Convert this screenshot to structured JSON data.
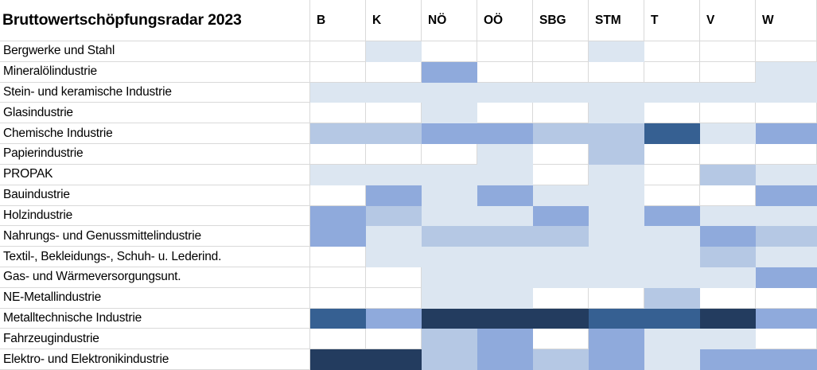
{
  "header": {
    "title": "Bruttowertschöpfungsradar 2023",
    "columns": [
      "B",
      "K",
      "NÖ",
      "OÖ",
      "SBG",
      "STM",
      "T",
      "V",
      "W"
    ]
  },
  "chart_data": {
    "type": "heatmap",
    "title": "Bruttowertschöpfungsradar 2023",
    "x_labels": [
      "B",
      "K",
      "NÖ",
      "OÖ",
      "SBG",
      "STM",
      "T",
      "V",
      "W"
    ],
    "y_labels": [
      "Bergwerke und Stahl",
      "Mineralölindustrie",
      "Stein- und keramische Industrie",
      "Glasindustrie",
      "Chemische Industrie",
      "Papierindustrie",
      "PROPAK",
      "Bauindustrie",
      "Holzindustrie",
      "Nahrungs- und Genussmittelindustrie",
      "Textil-, Bekleidungs-, Schuh- u. Lederind.",
      "Gas- und Wärmeversorgungsunt.",
      "NE-Metallindustrie",
      "Metalltechnische Industrie",
      "Fahrzeugindustrie",
      "Elektro- und Elektronikindustrie"
    ],
    "values": [
      [
        0,
        1,
        0,
        0,
        0,
        1,
        0,
        0,
        0
      ],
      [
        0,
        0,
        3,
        0,
        0,
        0,
        0,
        0,
        1
      ],
      [
        1,
        1,
        1,
        1,
        1,
        1,
        1,
        1,
        1
      ],
      [
        0,
        0,
        1,
        0,
        0,
        1,
        0,
        0,
        0
      ],
      [
        2,
        2,
        3,
        3,
        2,
        2,
        4,
        1,
        3
      ],
      [
        0,
        0,
        0,
        1,
        0,
        2,
        0,
        0,
        0
      ],
      [
        1,
        1,
        1,
        1,
        0,
        1,
        0,
        2,
        1
      ],
      [
        0,
        3,
        1,
        3,
        1,
        1,
        0,
        0,
        3
      ],
      [
        3,
        2,
        1,
        1,
        3,
        1,
        3,
        1,
        1
      ],
      [
        3,
        1,
        2,
        2,
        2,
        1,
        1,
        3,
        2
      ],
      [
        0,
        1,
        1,
        1,
        1,
        1,
        1,
        2,
        1
      ],
      [
        0,
        0,
        1,
        1,
        1,
        1,
        1,
        1,
        3
      ],
      [
        0,
        0,
        1,
        1,
        0,
        0,
        2,
        0,
        0
      ],
      [
        4,
        3,
        5,
        5,
        5,
        4,
        4,
        5,
        3
      ],
      [
        0,
        0,
        2,
        3,
        0,
        3,
        1,
        1,
        0
      ],
      [
        5,
        5,
        2,
        3,
        2,
        3,
        1,
        3,
        3
      ]
    ],
    "color_scale": [
      "#ffffff",
      "#dce6f1",
      "#b5c8e4",
      "#8faadc",
      "#366092",
      "#233c5f"
    ],
    "value_scale": "shading intensity level 0 (none) to 5 (darkest blue); no numeric values shown in image",
    "gridline_color": "#d9d9d9",
    "legend_position": "none"
  }
}
